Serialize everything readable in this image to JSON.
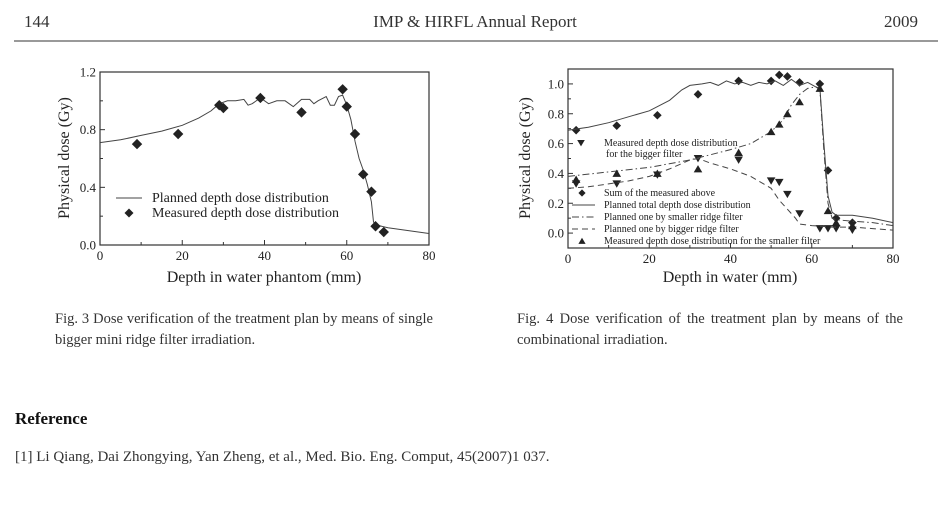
{
  "header": {
    "page_number": "144",
    "running_title": "IMP & HIRFL Annual Report",
    "year": "2009"
  },
  "chart_data": [
    {
      "id": "fig3",
      "type": "line+scatter",
      "title": "",
      "xlabel": "Depth in water phantom (mm)",
      "ylabel": "Physical dose (Gy)",
      "xlim": [
        0,
        80
      ],
      "ylim": [
        0.0,
        1.2
      ],
      "xticks": [
        "0",
        "20",
        "40",
        "60",
        "80"
      ],
      "yticks": [
        "0.0",
        "0.4",
        "0.8",
        "1.2"
      ],
      "ytick_values": [
        0.0,
        0.4,
        0.8,
        1.2
      ],
      "xtick_values": [
        0,
        20,
        40,
        60,
        80
      ],
      "grid": false,
      "legend_position": "bottom-left",
      "series": [
        {
          "name": "Planned depth dose distribution",
          "style": "solid-line",
          "x": [
            0,
            5,
            10,
            15,
            20,
            24,
            27,
            29,
            31,
            33,
            35,
            36,
            37,
            39,
            41,
            43,
            45,
            47,
            49,
            51,
            52,
            53,
            55,
            56,
            57,
            58,
            59,
            60,
            61,
            62,
            63,
            64,
            65,
            66,
            66.5,
            67,
            70,
            75,
            80
          ],
          "y": [
            0.71,
            0.73,
            0.76,
            0.79,
            0.83,
            0.88,
            0.93,
            0.98,
            1.0,
            1.0,
            1.01,
            0.97,
            0.98,
            1.02,
            0.98,
            1.0,
            1.0,
            0.96,
            1.01,
            1.01,
            0.98,
            1.0,
            1.03,
            0.97,
            0.97,
            1.03,
            1.04,
            0.97,
            0.87,
            0.72,
            0.6,
            0.52,
            0.42,
            0.3,
            0.16,
            0.14,
            0.12,
            0.1,
            0.08
          ]
        },
        {
          "name": "Measured depth dose distribution",
          "style": "diamond-marker",
          "x": [
            9,
            19,
            29,
            30,
            39,
            49,
            59,
            60,
            62,
            64,
            66,
            67,
            69
          ],
          "y": [
            0.7,
            0.77,
            0.97,
            0.95,
            1.02,
            0.92,
            1.08,
            0.96,
            0.77,
            0.49,
            0.37,
            0.13,
            0.09
          ]
        }
      ]
    },
    {
      "id": "fig4",
      "type": "line+scatter",
      "title": "",
      "xlabel": "Depth in water (mm)",
      "ylabel": "Physical dose (Gy)",
      "xlim": [
        0,
        80
      ],
      "ylim": [
        -0.1,
        1.1
      ],
      "xticks": [
        "0",
        "20",
        "40",
        "60",
        "80"
      ],
      "yticks": [
        "0.0",
        "0.2",
        "0.4",
        "0.6",
        "0.8",
        "1.0"
      ],
      "ytick_values": [
        0.0,
        0.2,
        0.4,
        0.6,
        0.8,
        1.0
      ],
      "xtick_values": [
        0,
        20,
        40,
        60,
        80
      ],
      "grid": false,
      "legend_position": "center-left",
      "series": [
        {
          "name": "Measured depth dose distribution for the bigger filter",
          "style": "down-triangle-marker",
          "x": [
            2,
            12,
            22,
            32,
            42,
            50,
            52,
            54,
            57,
            62,
            64,
            66,
            70
          ],
          "y": [
            0.33,
            0.33,
            0.39,
            0.5,
            0.49,
            0.35,
            0.34,
            0.26,
            0.13,
            0.03,
            0.03,
            0.03,
            0.02
          ]
        },
        {
          "name": "Sum of the measured above",
          "style": "diamond-marker",
          "x": [
            2,
            12,
            22,
            32,
            42,
            50,
            52,
            54,
            57,
            62,
            64,
            66,
            70
          ],
          "y": [
            0.69,
            0.72,
            0.79,
            0.93,
            1.02,
            1.02,
            1.06,
            1.05,
            1.01,
            1.0,
            0.42,
            0.1,
            0.07
          ]
        },
        {
          "name": "Planned total depth dose distribution",
          "style": "solid-line",
          "x": [
            0,
            5,
            10,
            15,
            20,
            25,
            28,
            30,
            33,
            35,
            37,
            39,
            41,
            43,
            45,
            47,
            49,
            51,
            53,
            55,
            57,
            59,
            61,
            62,
            63,
            64,
            65,
            66,
            68,
            70,
            75,
            80
          ],
          "y": [
            0.69,
            0.71,
            0.74,
            0.78,
            0.82,
            0.89,
            0.96,
            0.99,
            1.0,
            1.01,
            0.99,
            1.02,
            1.0,
            1.01,
            0.99,
            1.01,
            1.0,
            1.02,
            0.99,
            1.03,
            0.99,
            1.01,
            0.98,
            0.97,
            0.6,
            0.25,
            0.14,
            0.12,
            0.12,
            0.12,
            0.1,
            0.07
          ]
        },
        {
          "name": "Planned one by smaller ridge filter",
          "style": "dash-dot-line",
          "x": [
            0,
            10,
            20,
            30,
            40,
            45,
            50,
            53,
            55,
            57,
            59,
            61,
            62,
            63,
            64,
            65,
            66,
            70,
            75,
            80
          ],
          "y": [
            0.38,
            0.41,
            0.44,
            0.49,
            0.56,
            0.6,
            0.68,
            0.76,
            0.86,
            0.93,
            0.97,
            0.98,
            0.96,
            0.55,
            0.2,
            0.1,
            0.09,
            0.08,
            0.07,
            0.05
          ]
        },
        {
          "name": "Planned one by bigger ridge filter",
          "style": "dashed-line",
          "x": [
            0,
            5,
            10,
            15,
            20,
            25,
            30,
            32,
            35,
            40,
            45,
            50,
            52,
            54,
            56,
            57,
            60,
            65,
            70,
            75,
            80
          ],
          "y": [
            0.3,
            0.31,
            0.33,
            0.35,
            0.38,
            0.43,
            0.49,
            0.5,
            0.47,
            0.43,
            0.38,
            0.3,
            0.22,
            0.16,
            0.1,
            0.06,
            0.05,
            0.04,
            0.04,
            0.03,
            0.02
          ]
        },
        {
          "name": "Measured depth dose distribution for the smaller filter",
          "style": "up-triangle-marker",
          "x": [
            2,
            12,
            22,
            32,
            42,
            50,
            52,
            54,
            57,
            62,
            64,
            66,
            70
          ],
          "y": [
            0.36,
            0.4,
            0.4,
            0.43,
            0.54,
            0.68,
            0.73,
            0.8,
            0.88,
            0.97,
            0.15,
            0.07,
            0.05
          ]
        }
      ]
    }
  ],
  "captions": {
    "fig3": "Fig. 3  Dose verification of the treatment plan by means of single bigger mini ridge filter irradiation.",
    "fig4": "Fig. 4  Dose verification of the treatment plan by means of the combinational irradiation."
  },
  "references": {
    "heading": "Reference",
    "items": [
      "[1]  Li Qiang, Dai Zhongying, Yan Zheng, et al., Med. Bio. Eng. Comput, 45(2007)1 037."
    ]
  },
  "colors": {
    "ink": "#222222",
    "rule": "#999999"
  }
}
